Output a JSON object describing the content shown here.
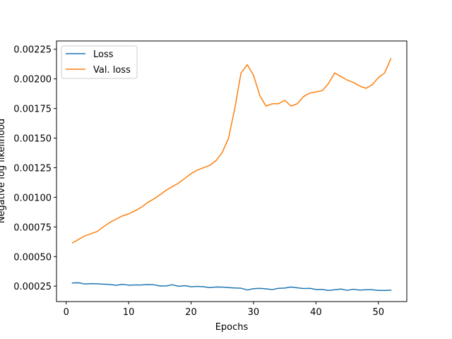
{
  "chart_data": {
    "type": "line",
    "xlabel": "Epochs",
    "ylabel": "Negative log likelihood",
    "xlim": [
      -1.55,
      54.55
    ],
    "ylim": [
      0.00012,
      0.00232
    ],
    "xticks": [
      0,
      10,
      20,
      30,
      40,
      50
    ],
    "xtick_labels": [
      "0",
      "10",
      "20",
      "30",
      "40",
      "50"
    ],
    "yticks": [
      0.00025,
      0.0005,
      0.00075,
      0.001,
      0.00125,
      0.0015,
      0.00175,
      0.002,
      0.00225
    ],
    "ytick_labels": [
      "0.00025",
      "0.00050",
      "0.00075",
      "0.00100",
      "0.00125",
      "0.00150",
      "0.00175",
      "0.00200",
      "0.00225"
    ],
    "grid": false,
    "legend_position": "top-left",
    "x": [
      1,
      2,
      3,
      4,
      5,
      6,
      7,
      8,
      9,
      10,
      11,
      12,
      13,
      14,
      15,
      16,
      17,
      18,
      19,
      20,
      21,
      22,
      23,
      24,
      25,
      26,
      27,
      28,
      29,
      30,
      31,
      32,
      33,
      34,
      35,
      36,
      37,
      38,
      39,
      40,
      41,
      42,
      43,
      44,
      45,
      46,
      47,
      48,
      49,
      50,
      51,
      52
    ],
    "series": [
      {
        "name": "Loss",
        "color": "#1f77b4",
        "values": [
          0.000277,
          0.000279,
          0.000268,
          0.000271,
          0.00027,
          0.000267,
          0.000264,
          0.000258,
          0.000265,
          0.000259,
          0.00026,
          0.00026,
          0.000264,
          0.000262,
          0.000252,
          0.000252,
          0.000262,
          0.000249,
          0.000254,
          0.000245,
          0.000248,
          0.000245,
          0.000238,
          0.000243,
          0.000242,
          0.000238,
          0.000235,
          0.000233,
          0.000218,
          0.000229,
          0.000232,
          0.000227,
          0.000221,
          0.000232,
          0.000234,
          0.000243,
          0.000236,
          0.00023,
          0.000232,
          0.000222,
          0.000222,
          0.000214,
          0.00022,
          0.000226,
          0.000215,
          0.000224,
          0.000217,
          0.00022,
          0.00022,
          0.000214,
          0.000214,
          0.000216
        ]
      },
      {
        "name": "Val. loss",
        "color": "#ff7f0e",
        "values": [
          0.000615,
          0.000645,
          0.000675,
          0.000693,
          0.000712,
          0.000753,
          0.000788,
          0.000816,
          0.000843,
          0.00086,
          0.000885,
          0.000915,
          0.000955,
          0.000985,
          0.00102,
          0.00106,
          0.00109,
          0.00112,
          0.00116,
          0.0012,
          0.00123,
          0.00125,
          0.00127,
          0.00131,
          0.00138,
          0.0015,
          0.00175,
          0.00205,
          0.00212,
          0.00203,
          0.00186,
          0.00177,
          0.00179,
          0.00179,
          0.00182,
          0.00177,
          0.00179,
          0.00185,
          0.00188,
          0.00189,
          0.0019,
          0.00196,
          0.00205,
          0.00202,
          0.00199,
          0.00197,
          0.00194,
          0.00192,
          0.00195,
          0.00201,
          0.00205,
          0.00217
        ]
      }
    ]
  }
}
